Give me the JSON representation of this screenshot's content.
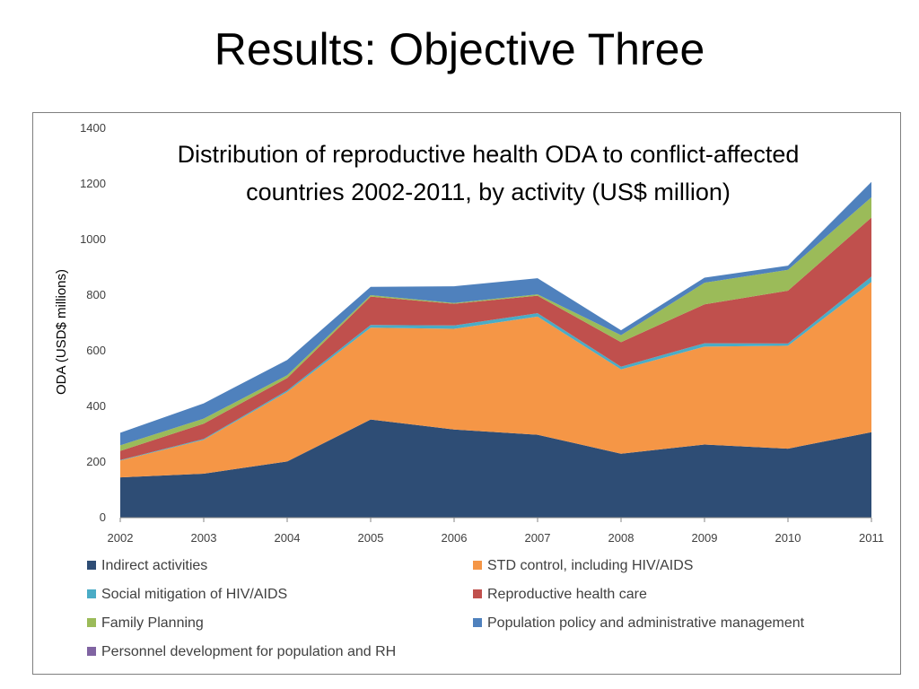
{
  "slide": {
    "title": "Results: Objective Three"
  },
  "chart_data": {
    "type": "area",
    "stacked": true,
    "title_lines": [
      "Distribution of reproductive health ODA to conflict-affected",
      "countries 2002-2011, by activity (US$ million)"
    ],
    "xlabel": "",
    "ylabel": "ODA (USD$ millions)",
    "ylim": [
      0,
      1400
    ],
    "yticks": [
      "0",
      "200",
      "400",
      "600",
      "800",
      "1000",
      "1200",
      "1400"
    ],
    "categories": [
      "2002",
      "2003",
      "2004",
      "2005",
      "2006",
      "2007",
      "2008",
      "2009",
      "2010",
      "2011"
    ],
    "grid": false,
    "legend_position": "bottom",
    "series": [
      {
        "name": "Indirect activities",
        "color": "#2e4d75",
        "values": [
          145,
          158,
          202,
          353,
          317,
          298,
          230,
          263,
          248,
          307
        ]
      },
      {
        "name": "STD control, including HIV/AIDS",
        "color": "#f59646",
        "values": [
          60,
          122,
          250,
          330,
          362,
          425,
          303,
          352,
          370,
          540
        ]
      },
      {
        "name": "Social mitigation of HIV/AIDS",
        "color": "#4aacc6",
        "values": [
          2,
          3,
          5,
          10,
          12,
          12,
          10,
          12,
          8,
          20
        ]
      },
      {
        "name": "Reproductive health care",
        "color": "#c0504d",
        "values": [
          33,
          55,
          45,
          102,
          78,
          63,
          88,
          140,
          190,
          212
        ]
      },
      {
        "name": "Family Planning",
        "color": "#9bbb59",
        "values": [
          20,
          18,
          10,
          5,
          3,
          5,
          25,
          78,
          75,
          73
        ]
      },
      {
        "name": "Population policy and administrative management",
        "color": "#4f81bd",
        "values": [
          45,
          55,
          55,
          30,
          60,
          58,
          18,
          18,
          15,
          55
        ]
      },
      {
        "name": "Personnel development for population and RH",
        "color": "#8064a2",
        "values": [
          0,
          0,
          0,
          0,
          0,
          0,
          0,
          0,
          0,
          0
        ]
      }
    ]
  }
}
